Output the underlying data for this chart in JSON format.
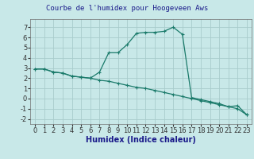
{
  "title": "Courbe de l'humidex pour Hoogeveen Aws",
  "xlabel": "Humidex (Indice chaleur)",
  "background_color": "#c8e8e8",
  "grid_color": "#a8cccc",
  "line_color": "#1a7a6a",
  "xlim": [
    -0.5,
    23.5
  ],
  "ylim": [
    -2.5,
    7.8
  ],
  "yticks": [
    -2,
    -1,
    0,
    1,
    2,
    3,
    4,
    5,
    6,
    7
  ],
  "xticks": [
    0,
    1,
    2,
    3,
    4,
    5,
    6,
    7,
    8,
    9,
    10,
    11,
    12,
    13,
    14,
    15,
    16,
    17,
    18,
    19,
    20,
    21,
    22,
    23
  ],
  "curve1_x": [
    0,
    1,
    2,
    3,
    4,
    5,
    6,
    7,
    8,
    9,
    10,
    11,
    12,
    13,
    14,
    15,
    16,
    17,
    18,
    19,
    20,
    21,
    22,
    23
  ],
  "curve1_y": [
    2.9,
    2.9,
    2.6,
    2.5,
    2.2,
    2.1,
    2.0,
    2.6,
    4.5,
    4.5,
    5.3,
    6.4,
    6.5,
    6.5,
    6.6,
    7.0,
    6.3,
    0.1,
    -0.1,
    -0.3,
    -0.5,
    -0.8,
    -0.7,
    -1.6
  ],
  "curve2_x": [
    0,
    1,
    2,
    3,
    4,
    5,
    6,
    7,
    8,
    9,
    10,
    11,
    12,
    13,
    14,
    15,
    16,
    17,
    18,
    19,
    20,
    21,
    22,
    23
  ],
  "curve2_y": [
    2.9,
    2.9,
    2.6,
    2.5,
    2.2,
    2.1,
    2.0,
    1.8,
    1.7,
    1.5,
    1.3,
    1.1,
    1.0,
    0.8,
    0.6,
    0.4,
    0.2,
    0.0,
    -0.2,
    -0.4,
    -0.6,
    -0.8,
    -1.0,
    -1.6
  ],
  "tick_fontsize": 6,
  "xlabel_fontsize": 7,
  "title_fontsize": 6.5
}
